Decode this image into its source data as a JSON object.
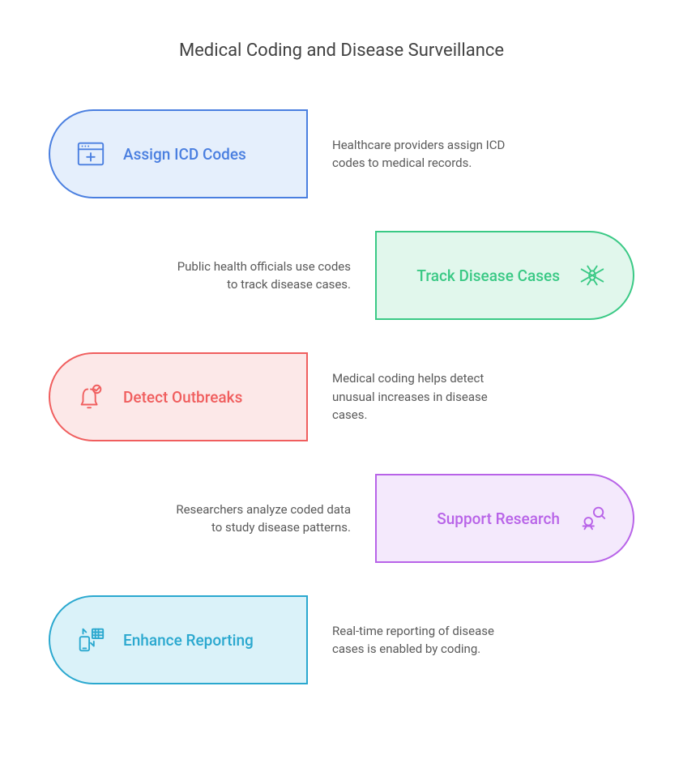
{
  "title": "Medical Coding and Disease Surveillance",
  "items": [
    {
      "label": "Assign ICD Codes",
      "description": "Healthcare providers assign ICD codes to medical records.",
      "side": "left",
      "border_color": "#4a7fe0",
      "fill_color": "#e5effc",
      "text_color": "#4a7fe0",
      "icon": "medical-window"
    },
    {
      "label": "Track Disease Cases",
      "description": "Public health officials use codes to track disease cases.",
      "side": "right",
      "border_color": "#3ac985",
      "fill_color": "#e1f7ec",
      "text_color": "#3ac985",
      "icon": "mosquito"
    },
    {
      "label": "Detect Outbreaks",
      "description": "Medical coding helps detect unusual increases in disease cases.",
      "side": "left",
      "border_color": "#f05e5e",
      "fill_color": "#fce8e8",
      "text_color": "#f05e5e",
      "icon": "alert-bell"
    },
    {
      "label": "Support Research",
      "description": "Researchers analyze coded data to study disease patterns.",
      "side": "right",
      "border_color": "#b863e8",
      "fill_color": "#f4e9fc",
      "text_color": "#b863e8",
      "icon": "research"
    },
    {
      "label": "Enhance Reporting",
      "description": "Real-time reporting of disease cases is enabled by coding.",
      "side": "left",
      "border_color": "#2aa8cf",
      "fill_color": "#daf2f9",
      "text_color": "#2aa8cf",
      "icon": "reporting"
    }
  ]
}
